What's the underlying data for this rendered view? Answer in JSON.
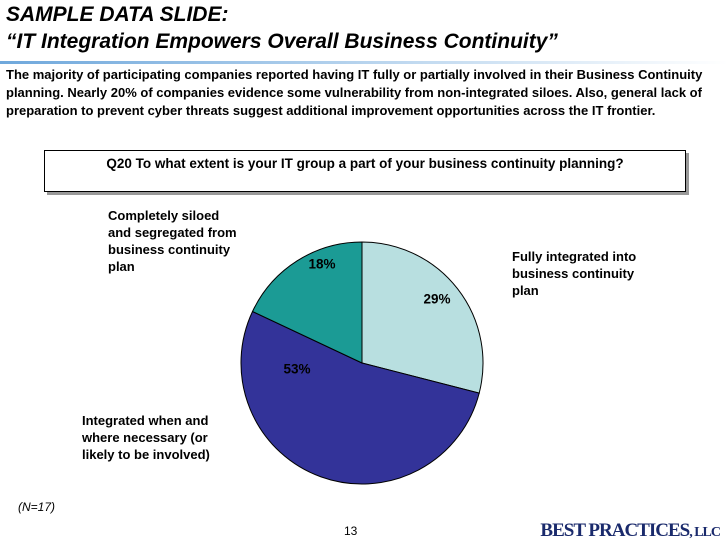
{
  "header": {
    "title_line1": "SAMPLE DATA SLIDE:",
    "title_line2": "“IT Integration Empowers Overall Business Continuity”"
  },
  "summary": "The majority of participating companies reported having IT fully or partially involved in their Business Continuity planning. Nearly 20% of companies evidence some vulnerability from non-integrated siloes. Also, general lack of preparation to prevent cyber threats suggest additional improvement opportunities across the IT frontier.",
  "chart_data": {
    "type": "pie",
    "title": "Q20 To what extent is your IT group a part of your business continuity planning?",
    "categories": [
      "Fully integrated into business continuity plan",
      "Integrated when and where necessary (or likely to be involved)",
      "Completely siloed and segregated from business continuity plan"
    ],
    "values": [
      29,
      53,
      18
    ],
    "value_labels": [
      "29%",
      "53%",
      "18%"
    ],
    "colors": [
      "#b8dfe0",
      "#333399",
      "#1b9b95"
    ]
  },
  "footer": {
    "note": "(N=17)",
    "page": "13",
    "logo": "BEST PRACTICES",
    "logo_suffix": ", LLC"
  }
}
